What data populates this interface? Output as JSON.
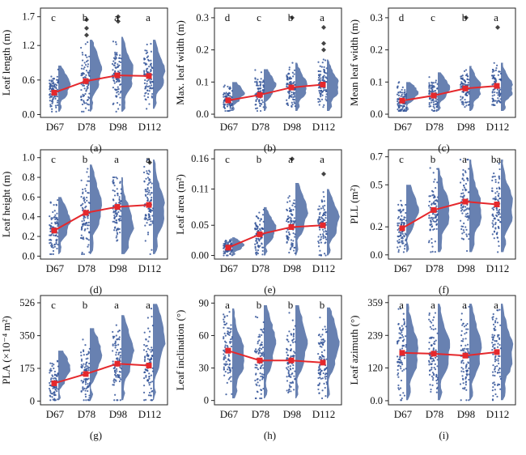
{
  "chart_data": [
    {
      "panel": "(a)",
      "type": "scatter",
      "ylabel": "Leaf length (m)",
      "yticks": [
        "0.0",
        "0.6",
        "1.2",
        "1.7"
      ],
      "ytick_values": [
        0.0,
        0.6,
        1.2,
        1.7
      ],
      "ylim": [
        -0.05,
        1.85
      ],
      "categories": [
        "D67",
        "D78",
        "D98",
        "D112"
      ],
      "letters": [
        "c",
        "b",
        "a",
        "a"
      ],
      "means": [
        0.38,
        0.58,
        0.68,
        0.67
      ],
      "spread": [
        [
          0.05,
          0.85
        ],
        [
          0.05,
          1.3
        ],
        [
          0.05,
          1.35
        ],
        [
          0.1,
          1.3
        ]
      ],
      "max_markers": [
        [],
        [
          1.65,
          1.5,
          1.38
        ],
        [
          1.7,
          1.62
        ],
        []
      ]
    },
    {
      "panel": "(b)",
      "type": "scatter",
      "ylabel": "Max. leaf width (m)",
      "yticks": [
        "0.0",
        "0.1",
        "0.2",
        "0.3"
      ],
      "ytick_values": [
        0.0,
        0.1,
        0.2,
        0.3
      ],
      "ylim": [
        -0.01,
        0.33
      ],
      "categories": [
        "D67",
        "D78",
        "D98",
        "D112"
      ],
      "letters": [
        "d",
        "c",
        "b",
        "a"
      ],
      "means": [
        0.043,
        0.06,
        0.083,
        0.092
      ],
      "spread": [
        [
          0.01,
          0.1
        ],
        [
          0.01,
          0.14
        ],
        [
          0.01,
          0.16
        ],
        [
          0.01,
          0.17
        ]
      ],
      "max_markers": [
        [],
        [],
        [
          0.3
        ],
        [
          0.27,
          0.22,
          0.2
        ]
      ]
    },
    {
      "panel": "(c)",
      "type": "scatter",
      "ylabel": "Mean leaf width (m)",
      "yticks": [
        "0.0",
        "0.1",
        "0.2",
        "0.3"
      ],
      "ytick_values": [
        0.0,
        0.1,
        0.2,
        0.3
      ],
      "ylim": [
        -0.01,
        0.33
      ],
      "categories": [
        "D67",
        "D78",
        "D98",
        "D112"
      ],
      "letters": [
        "d",
        "c",
        "b",
        "a"
      ],
      "means": [
        0.042,
        0.058,
        0.08,
        0.088
      ],
      "spread": [
        [
          0.01,
          0.1
        ],
        [
          0.01,
          0.13
        ],
        [
          0.01,
          0.15
        ],
        [
          0.01,
          0.16
        ]
      ],
      "max_markers": [
        [],
        [],
        [
          0.3
        ],
        [
          0.27
        ]
      ]
    },
    {
      "panel": "(d)",
      "type": "scatter",
      "ylabel": "Leaf height (m)",
      "yticks": [
        "0.0",
        "0.2",
        "0.4",
        "0.6",
        "0.8",
        "1.0"
      ],
      "ytick_values": [
        0.0,
        0.2,
        0.4,
        0.6,
        0.8,
        1.0
      ],
      "ylim": [
        -0.03,
        1.08
      ],
      "categories": [
        "D67",
        "D78",
        "D98",
        "D112"
      ],
      "letters": [
        "c",
        "b",
        "a",
        "a"
      ],
      "means": [
        0.26,
        0.44,
        0.5,
        0.52
      ],
      "spread": [
        [
          0.02,
          0.6
        ],
        [
          0.02,
          0.93
        ],
        [
          0.02,
          0.8
        ],
        [
          0.02,
          0.98
        ]
      ],
      "max_markers": [
        [],
        [],
        [],
        [
          0.95
        ]
      ]
    },
    {
      "panel": "(e)",
      "type": "scatter",
      "ylabel": "Leaf area (m²)",
      "yticks": [
        "0.00",
        "0.05",
        "0.11",
        "0.16"
      ],
      "ytick_values": [
        0.0,
        0.05,
        0.11,
        0.16
      ],
      "ylim": [
        -0.006,
        0.175
      ],
      "categories": [
        "D67",
        "D78",
        "D98",
        "D112"
      ],
      "letters": [
        "c",
        "b",
        "a",
        "a"
      ],
      "means": [
        0.013,
        0.035,
        0.047,
        0.05
      ],
      "spread": [
        [
          0.0,
          0.03
        ],
        [
          0.0,
          0.08
        ],
        [
          0.0,
          0.12
        ],
        [
          0.0,
          0.11
        ]
      ],
      "max_markers": [
        [],
        [],
        [
          0.16
        ],
        [
          0.135
        ]
      ]
    },
    {
      "panel": "(f)",
      "type": "scatter",
      "ylabel": "PLL (m²)",
      "yticks": [
        "0.0",
        "0.2",
        "0.5",
        "0.7"
      ],
      "ytick_values": [
        0.0,
        0.2,
        0.5,
        0.7
      ],
      "ylim": [
        -0.03,
        0.75
      ],
      "categories": [
        "D67",
        "D78",
        "D98",
        "D112"
      ],
      "letters": [
        "c",
        "b",
        "a",
        "ba"
      ],
      "means": [
        0.19,
        0.32,
        0.38,
        0.36
      ],
      "spread": [
        [
          0.02,
          0.5
        ],
        [
          0.02,
          0.62
        ],
        [
          0.02,
          0.68
        ],
        [
          0.02,
          0.68
        ]
      ],
      "max_markers": [
        [],
        [],
        [],
        []
      ]
    },
    {
      "panel": "(g)",
      "type": "scatter",
      "ylabel": "PLA (×10⁻⁴ m²)",
      "yticks": [
        "0",
        "175",
        "350",
        "526"
      ],
      "ytick_values": [
        0,
        175,
        350,
        526
      ],
      "ylim": [
        -20,
        565
      ],
      "categories": [
        "D67",
        "D78",
        "D98",
        "D112"
      ],
      "letters": [
        "c",
        "b",
        "a",
        "a"
      ],
      "means": [
        95,
        145,
        200,
        190
      ],
      "spread": [
        [
          5,
          270
        ],
        [
          5,
          390
        ],
        [
          5,
          460
        ],
        [
          5,
          520
        ]
      ],
      "max_markers": [
        [],
        [],
        [],
        []
      ]
    },
    {
      "panel": "(h)",
      "type": "scatter",
      "ylabel": "Leaf inclination (°)",
      "yticks": [
        "0",
        "30",
        "60",
        "90"
      ],
      "ytick_values": [
        0,
        30,
        60,
        90
      ],
      "ylim": [
        -4,
        97
      ],
      "categories": [
        "D67",
        "D78",
        "D98",
        "D112"
      ],
      "letters": [
        "a",
        "b",
        "b",
        "b"
      ],
      "means": [
        46,
        37,
        37,
        35
      ],
      "spread": [
        [
          2,
          85
        ],
        [
          2,
          88
        ],
        [
          2,
          88
        ],
        [
          2,
          86
        ]
      ],
      "max_markers": [
        [],
        [],
        [],
        []
      ]
    },
    {
      "panel": "(i)",
      "type": "scatter",
      "ylabel": "Leaf azimuth (°)",
      "yticks": [
        "0.0",
        "120",
        "239",
        "359"
      ],
      "ytick_values": [
        0,
        120,
        239,
        359
      ],
      "ylim": [
        -15,
        385
      ],
      "categories": [
        "D67",
        "D78",
        "D98",
        "D112"
      ],
      "letters": [
        "a",
        "a",
        "a",
        "a"
      ],
      "means": [
        175,
        172,
        165,
        178
      ],
      "spread": [
        [
          2,
          355
        ],
        [
          2,
          355
        ],
        [
          2,
          355
        ],
        [
          2,
          355
        ]
      ],
      "max_markers": [
        [],
        [],
        [],
        []
      ]
    }
  ]
}
